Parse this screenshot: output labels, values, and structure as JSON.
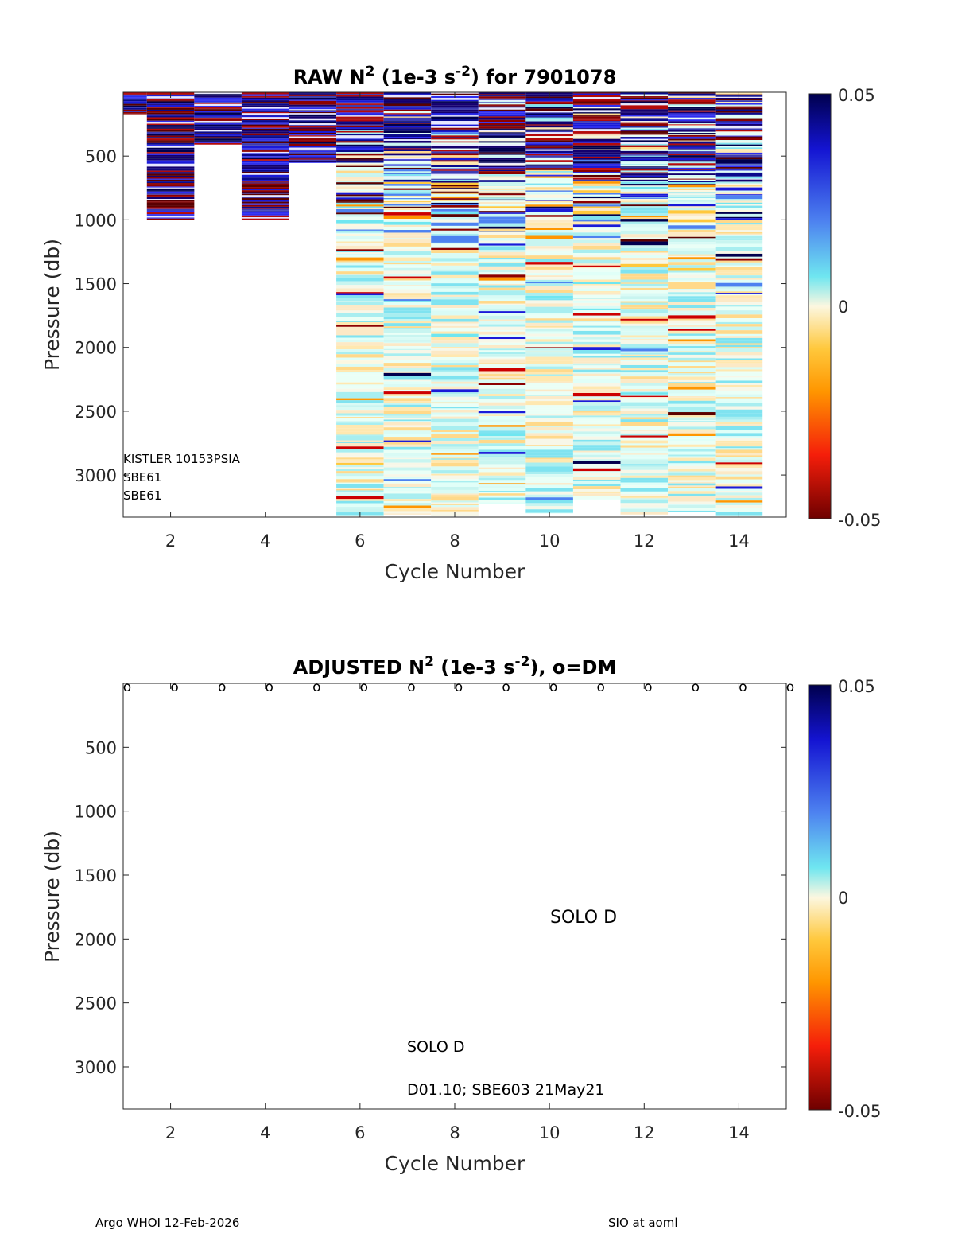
{
  "chart_data": [
    {
      "type": "heatmap",
      "title_main": "RAW N",
      "title_sup": "2",
      "title_units_a": " (1e-3 s",
      "title_units_sup": "-2",
      "title_tail": ") for 7901078",
      "xlabel": "Cycle Number",
      "ylabel": "Pressure (db)",
      "xlim": [
        1,
        15
      ],
      "ylim": [
        0,
        3330
      ],
      "y_reversed": true,
      "x_ticks": [
        "2",
        "4",
        "6",
        "8",
        "10",
        "12",
        "14"
      ],
      "y_ticks": [
        "500",
        "1000",
        "1500",
        "2000",
        "2500",
        "3000"
      ],
      "colorbar": {
        "min": -0.05,
        "max": 0.05,
        "labels": [
          "0.05",
          "0",
          "-0.05"
        ]
      },
      "profiles": [
        {
          "cycle": 1,
          "pmax": 170,
          "style": "strong"
        },
        {
          "cycle": 2,
          "pmax": 1000,
          "style": "strong"
        },
        {
          "cycle": 3,
          "pmax": 410,
          "style": "strong"
        },
        {
          "cycle": 4,
          "pmax": 1000,
          "style": "strong"
        },
        {
          "cycle": 5,
          "pmax": 550,
          "style": "strong"
        },
        {
          "cycle": 6,
          "pmax": 3320,
          "style": "mixed"
        },
        {
          "cycle": 7,
          "pmax": 3310,
          "style": "mixed"
        },
        {
          "cycle": 8,
          "pmax": 3320,
          "style": "mixed"
        },
        {
          "cycle": 9,
          "pmax": 3230,
          "style": "mixed"
        },
        {
          "cycle": 10,
          "pmax": 3300,
          "style": "mixed"
        },
        {
          "cycle": 11,
          "pmax": 3190,
          "style": "mixed"
        },
        {
          "cycle": 12,
          "pmax": 3310,
          "style": "mixed"
        },
        {
          "cycle": 13,
          "pmax": 3290,
          "style": "mixed"
        },
        {
          "cycle": 14,
          "pmax": 3320,
          "style": "mixed"
        }
      ],
      "annotations": [
        "KISTLER 10153PSIA",
        "SBE61",
        "SBE61"
      ]
    },
    {
      "type": "heatmap",
      "title_main": "ADJUSTED N",
      "title_sup": "2",
      "title_units_a": " (1e-3 s",
      "title_units_sup": "-2",
      "title_tail": "), o=DM",
      "xlabel": "Cycle Number",
      "ylabel": "Pressure (db)",
      "xlim": [
        1,
        15
      ],
      "ylim": [
        0,
        3330
      ],
      "y_reversed": true,
      "x_ticks": [
        "2",
        "4",
        "6",
        "8",
        "10",
        "12",
        "14"
      ],
      "y_ticks": [
        "500",
        "1000",
        "1500",
        "2000",
        "2500",
        "3000"
      ],
      "colorbar": {
        "min": -0.05,
        "max": 0.05,
        "labels": [
          "0.05",
          "0",
          "-0.05"
        ]
      },
      "dm_marker": "o",
      "dm_cycles": [
        1,
        2,
        3,
        4,
        5,
        6,
        7,
        8,
        9,
        10,
        11,
        12,
        13,
        14,
        15
      ],
      "annotations": [
        "SOLO D",
        "SOLO D",
        "D01.10; SBE603 21May21"
      ]
    }
  ],
  "footer": {
    "left": "Argo WHOI 12-Feb-2026",
    "right": "SIO at aoml"
  }
}
